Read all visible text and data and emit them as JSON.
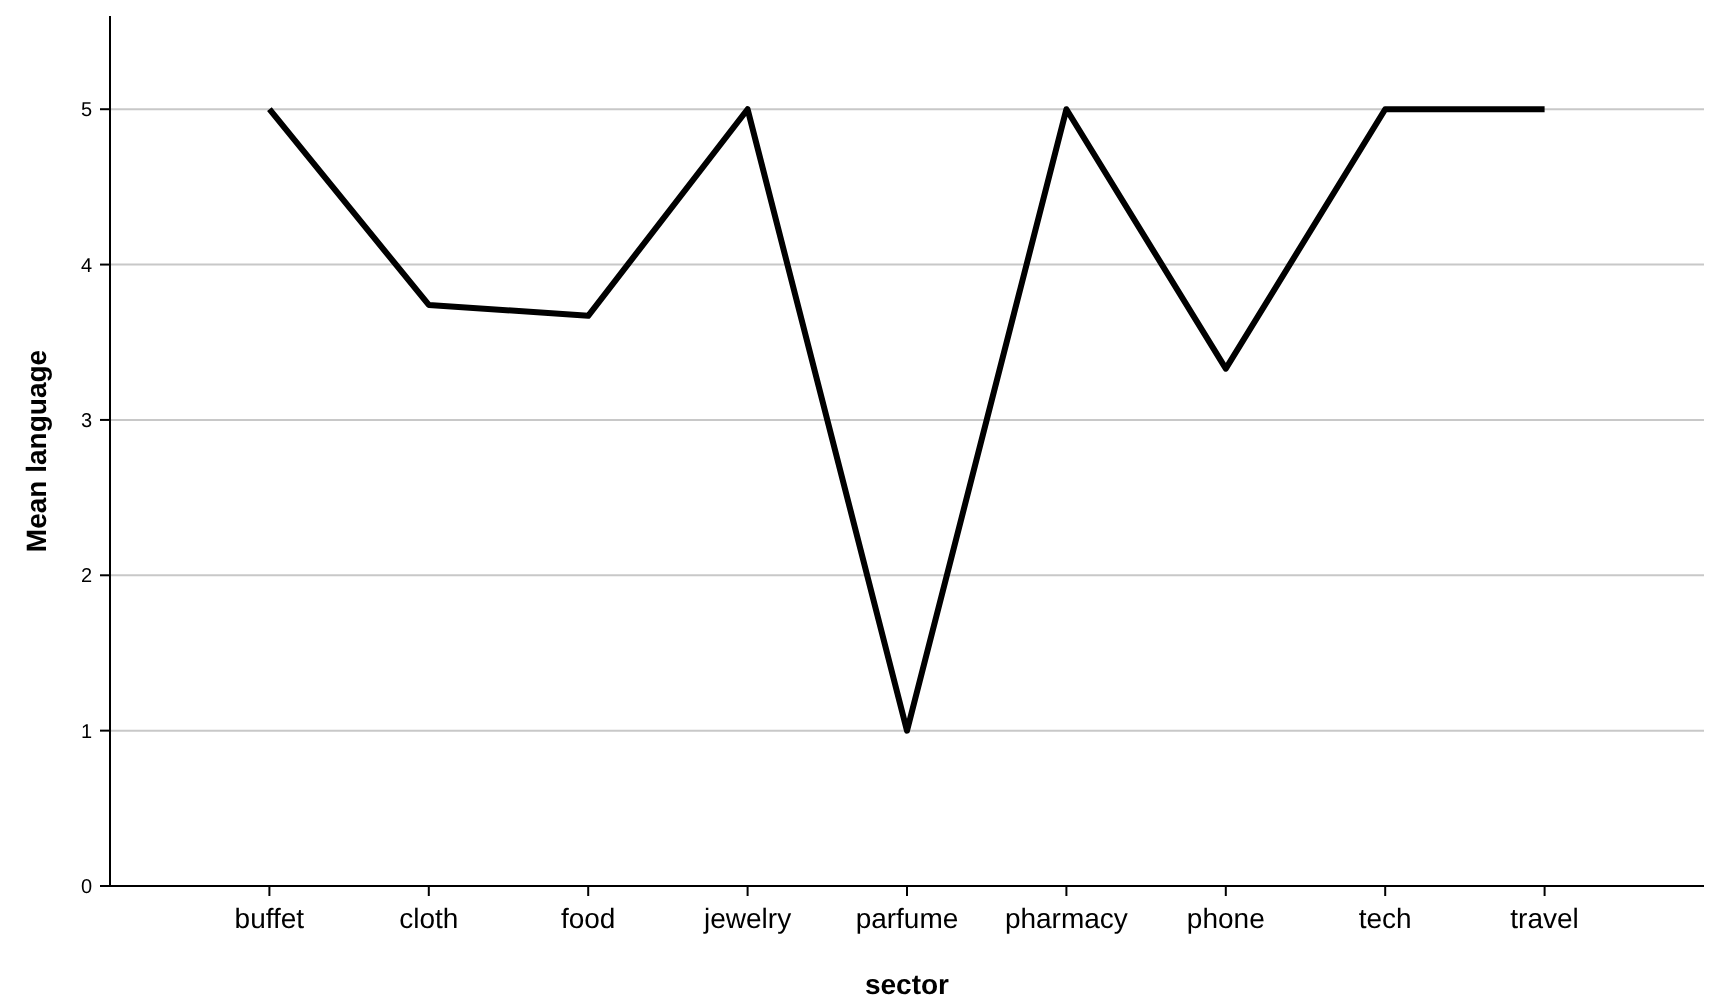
{
  "chart_data": {
    "type": "line",
    "xlabel": "sector",
    "ylabel": "Mean language",
    "categories": [
      "buffet",
      "cloth",
      "food",
      "jewelry",
      "parfume",
      "pharmacy",
      "phone",
      "tech",
      "travel"
    ],
    "series": [
      {
        "color": "#000000",
        "values": [
          5,
          3.74,
          3.67,
          5,
          1,
          5,
          3.33,
          5,
          5
        ]
      }
    ],
    "ylim": [
      0,
      5.6
    ],
    "yticks": [
      0,
      1,
      2,
      3,
      4,
      5
    ],
    "grid": "y",
    "marker": "none",
    "line_style": "solid"
  }
}
